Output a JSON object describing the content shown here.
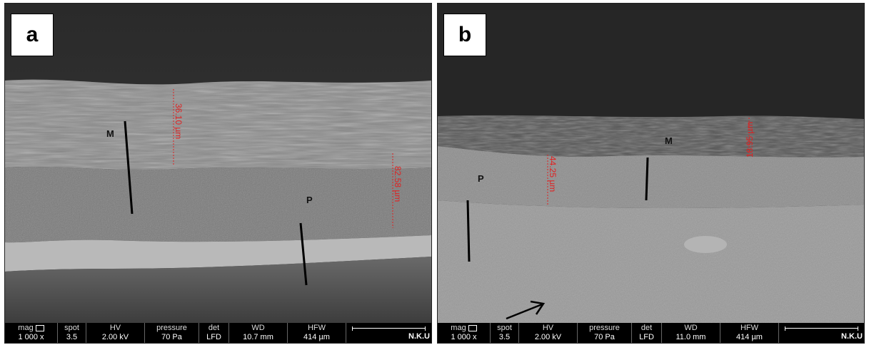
{
  "panels": [
    {
      "label": "a",
      "layer_labels": {
        "m": "M",
        "p": "P"
      },
      "measurements": [
        "36.10 µm",
        "82.58 µm"
      ],
      "infobar": {
        "mag_key": "mag",
        "mag_val": "1 000 x",
        "spot_key": "spot",
        "spot_val": "3.5",
        "hv_key": "HV",
        "hv_val": "2.00 kV",
        "pressure_key": "pressure",
        "pressure_val": "70 Pa",
        "det_key": "det",
        "det_val": "LFD",
        "wd_key": "WD",
        "wd_val": "10.7 mm",
        "hfw_key": "HFW",
        "hfw_val": "414 µm",
        "brand": "N.K.U"
      }
    },
    {
      "label": "b",
      "layer_labels": {
        "m": "M",
        "p": "P"
      },
      "measurements": [
        "44.25 µm",
        "18.95 µm"
      ],
      "infobar": {
        "mag_key": "mag",
        "mag_val": "1 000 x",
        "spot_key": "spot",
        "spot_val": "3.5",
        "hv_key": "HV",
        "hv_val": "2.00 kV",
        "pressure_key": "pressure",
        "pressure_val": "70 Pa",
        "det_key": "det",
        "det_val": "LFD",
        "wd_key": "WD",
        "wd_val": "11.0 mm",
        "hfw_key": "HFW",
        "hfw_val": "414 µm",
        "brand": "N.K.U"
      }
    }
  ],
  "colors": {
    "measure": "#e02020",
    "bar": "#000000"
  }
}
